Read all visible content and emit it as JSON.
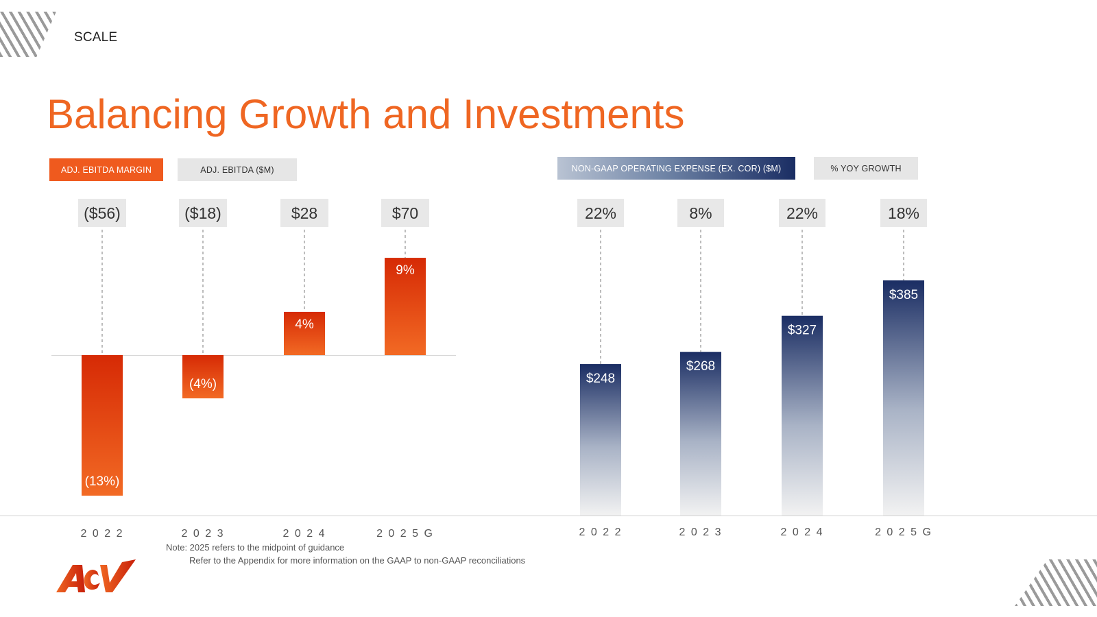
{
  "header": {
    "section": "SCALE",
    "title": "Balancing Growth and Investments"
  },
  "legend": {
    "margin": "ADJ. EBITDA MARGIN",
    "ebitda": "ADJ. EBITDA ($M)",
    "opex": "NON-GAAP OPERATING EXPENSE (EX. COR) ($M)",
    "yoy": "% YOY GROWTH"
  },
  "notes": {
    "line1": "Note: 2025 refers to the midpoint of guidance",
    "line2": "Refer to the Appendix for more information on the GAAP to non-GAAP reconciliations"
  },
  "logo": {
    "text": "ACV"
  },
  "colors": {
    "orange": "#ef6622",
    "orange_dark": "#d62a05",
    "navy": "#1a2d63",
    "label_bg": "#e8e8e8"
  },
  "chart_data": [
    {
      "type": "bar",
      "title": "ADJ. EBITDA MARGIN",
      "categories": [
        "2022",
        "2023",
        "2024",
        "2025G"
      ],
      "values": [
        -13,
        -4,
        4,
        9
      ],
      "value_labels": [
        "(13%)",
        "(4%)",
        "4%",
        "9%"
      ],
      "top_labels": [
        "($56)",
        "($18)",
        "$28",
        "$70"
      ],
      "top_label_series": "ADJ. EBITDA ($M)",
      "ebitda_values": [
        -56,
        -18,
        28,
        70
      ],
      "ylim": [
        -13,
        9
      ],
      "units": "%"
    },
    {
      "type": "bar",
      "title": "NON-GAAP OPERATING EXPENSE (EX. COR) ($M)",
      "categories": [
        "2022",
        "2023",
        "2024",
        "2025G"
      ],
      "values": [
        248,
        268,
        327,
        385
      ],
      "value_labels": [
        "$248",
        "$268",
        "$327",
        "$385"
      ],
      "top_labels": [
        "22%",
        "8%",
        "22%",
        "18%"
      ],
      "top_label_series": "% YOY GROWTH",
      "yoy_growth": [
        22,
        8,
        22,
        18
      ],
      "ylim": [
        0,
        385
      ],
      "units": "$M"
    }
  ]
}
